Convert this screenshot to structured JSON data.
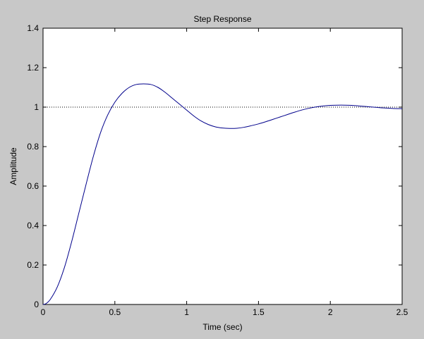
{
  "window": {
    "background": "#c8c8c8"
  },
  "chart_data": {
    "type": "line",
    "title": "Step Response",
    "xlabel": "Time (sec)",
    "ylabel": "Amplitude",
    "xlim": [
      0,
      2.5
    ],
    "ylim": [
      0,
      1.4
    ],
    "xticks": [
      0,
      0.5,
      1,
      1.5,
      2,
      2.5
    ],
    "xtick_labels": [
      "0",
      "0.5",
      "1",
      "1.5",
      "2",
      "2.5"
    ],
    "yticks": [
      0,
      0.2,
      0.4,
      0.6,
      0.8,
      1,
      1.2,
      1.4
    ],
    "ytick_labels": [
      "0",
      "0.2",
      "0.4",
      "0.6",
      "0.8",
      "1",
      "1.2",
      "1.4"
    ],
    "grid": false,
    "reference_line": {
      "y": 1,
      "style": "dotted",
      "color": "#000000"
    },
    "series": [
      {
        "color": "#00008b",
        "x": [
          0,
          0.02,
          0.05,
          0.1,
          0.15,
          0.2,
          0.25,
          0.3,
          0.35,
          0.4,
          0.45,
          0.5,
          0.55,
          0.6,
          0.65,
          0.7,
          0.75,
          0.8,
          0.85,
          0.9,
          0.95,
          1.0,
          1.05,
          1.1,
          1.15,
          1.2,
          1.25,
          1.3,
          1.35,
          1.4,
          1.45,
          1.5,
          1.55,
          1.6,
          1.65,
          1.7,
          1.75,
          1.8,
          1.85,
          1.9,
          1.95,
          2.0,
          2.05,
          2.1,
          2.15,
          2.2,
          2.25,
          2.3,
          2.35,
          2.4,
          2.45,
          2.5
        ],
        "y": [
          0,
          0.004,
          0.025,
          0.09,
          0.19,
          0.32,
          0.465,
          0.61,
          0.75,
          0.87,
          0.96,
          1.025,
          1.07,
          1.1,
          1.115,
          1.118,
          1.115,
          1.1,
          1.075,
          1.045,
          1.015,
          0.985,
          0.955,
          0.93,
          0.912,
          0.9,
          0.894,
          0.892,
          0.893,
          0.898,
          0.906,
          0.915,
          0.926,
          0.938,
          0.95,
          0.962,
          0.974,
          0.985,
          0.994,
          1.001,
          1.006,
          1.009,
          1.01,
          1.01,
          1.009,
          1.006,
          1.003,
          1.0,
          0.997,
          0.995,
          0.993,
          0.992
        ]
      }
    ]
  }
}
